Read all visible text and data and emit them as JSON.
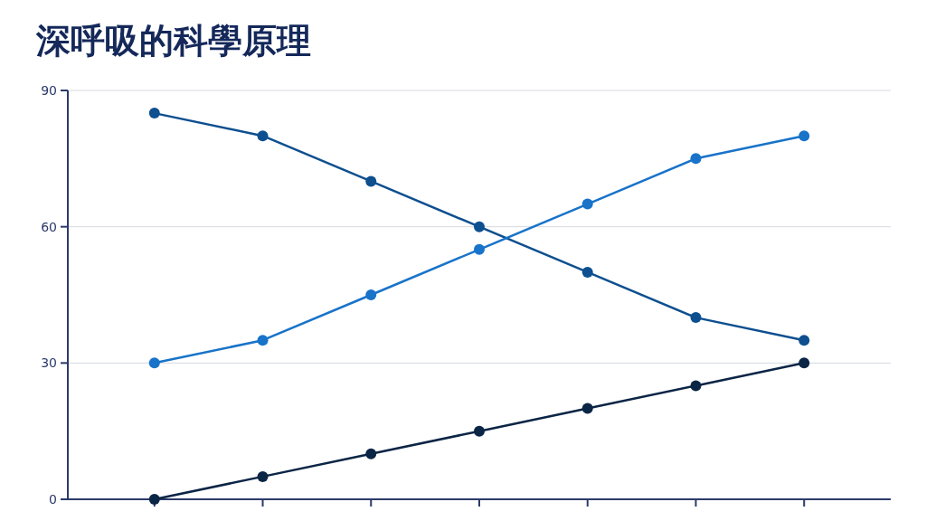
{
  "chart_data": {
    "type": "line",
    "title": "深呼吸的科學原理",
    "categories": [
      null,
      null,
      null,
      null,
      null,
      null,
      null
    ],
    "series": [
      {
        "color": "#0d4f8f",
        "values": [
          85,
          80,
          70,
          60,
          50,
          40,
          35
        ]
      },
      {
        "color": "#1873c9",
        "values": [
          30,
          35,
          45,
          55,
          65,
          75,
          80
        ]
      },
      {
        "color": "#0b2545",
        "values": [
          0,
          5,
          10,
          15,
          20,
          25,
          30
        ]
      }
    ],
    "ylim": [
      0,
      90
    ],
    "yticks": [
      0,
      30,
      60,
      90
    ],
    "grid": "y",
    "marker": "circle",
    "line_style": "solid"
  }
}
